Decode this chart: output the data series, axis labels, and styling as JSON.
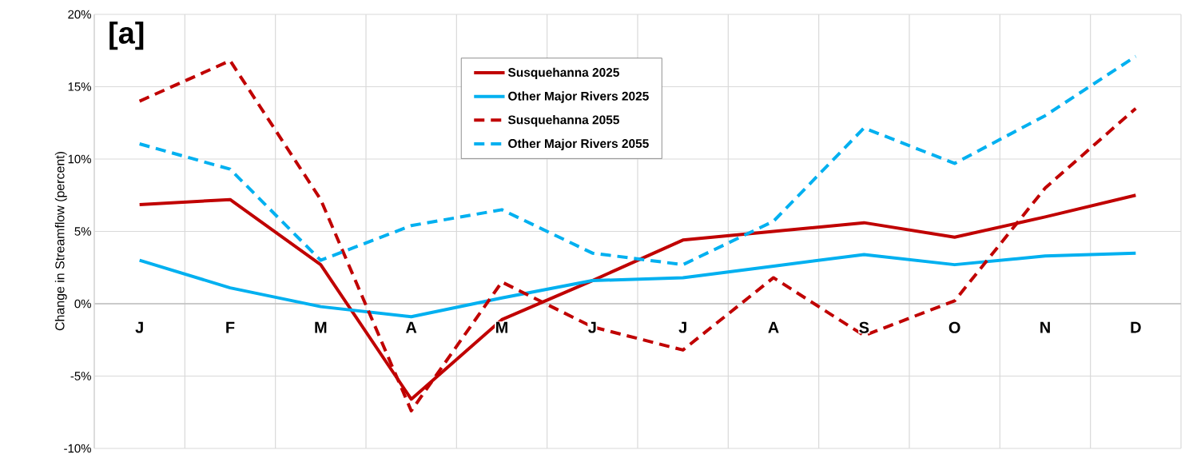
{
  "chart_data": {
    "type": "line",
    "ylabel": "Change in Streamflow (percent)",
    "annotations": [
      "[a]"
    ],
    "categories": [
      "J",
      "F",
      "M",
      "A",
      "M",
      "J",
      "J",
      "A",
      "S",
      "O",
      "N",
      "D"
    ],
    "series": [
      {
        "name": "Susquehanna 2025",
        "color": "#c00000",
        "line_style": "solid",
        "values": [
          6.85,
          7.2,
          2.7,
          -6.6,
          -1.1,
          1.6,
          4.4,
          5.0,
          5.6,
          4.6,
          6.0,
          7.5
        ]
      },
      {
        "name": "Other Major Rivers 2025",
        "color": "#00b0f0",
        "line_style": "solid",
        "values": [
          3.0,
          1.1,
          -0.2,
          -0.9,
          0.4,
          1.6,
          1.8,
          2.6,
          3.4,
          2.7,
          3.3,
          3.5
        ]
      },
      {
        "name": "Susquehanna 2055",
        "color": "#c00000",
        "line_style": "dashed",
        "values": [
          14.0,
          16.8,
          7.2,
          -7.4,
          1.5,
          -1.6,
          -3.2,
          1.8,
          -2.2,
          0.2,
          8.0,
          13.5
        ]
      },
      {
        "name": "Other Major Rivers 2055",
        "color": "#00b0f0",
        "line_style": "dashed",
        "values": [
          11.05,
          9.3,
          3.0,
          5.4,
          6.5,
          3.5,
          2.7,
          5.7,
          12.15,
          9.7,
          13.0,
          17.1
        ]
      }
    ],
    "ylim": [
      -10,
      20
    ],
    "yticks": [
      {
        "value": -10,
        "label": "-10%"
      },
      {
        "value": -5,
        "label": "-5%"
      },
      {
        "value": 0,
        "label": "0%"
      },
      {
        "value": 5,
        "label": "5%"
      },
      {
        "value": 10,
        "label": "10%"
      },
      {
        "value": 15,
        "label": "15%"
      },
      {
        "value": 20,
        "label": "20%"
      }
    ],
    "grid": true,
    "legend": "top",
    "marker": "none"
  }
}
